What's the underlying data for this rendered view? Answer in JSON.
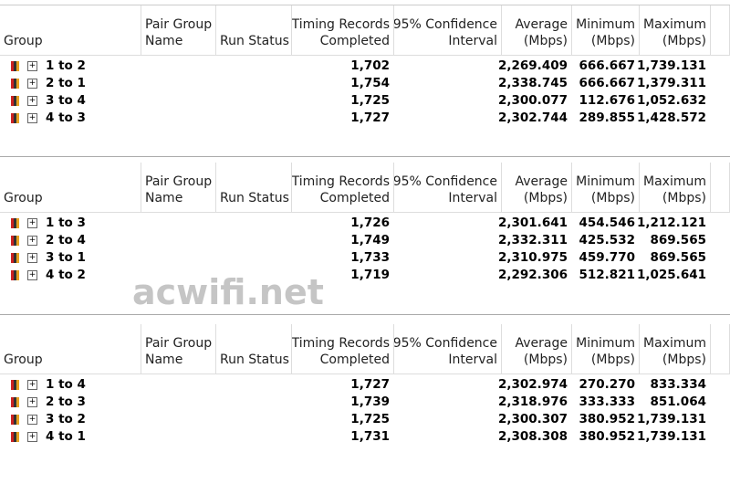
{
  "watermark": "acwifi.net",
  "tables": [
    {
      "columns": [
        [
          "Group"
        ],
        [
          "Pair Group",
          "Name"
        ],
        [
          "Run Status"
        ],
        [
          "Timing Records",
          "Completed"
        ],
        [
          "95% Confidence",
          "Interval"
        ],
        [
          "Average",
          "(Mbps)"
        ],
        [
          "Minimum",
          "(Mbps)"
        ],
        [
          "Maximum",
          "(Mbps)"
        ]
      ],
      "rows": [
        {
          "group": "1 to 2",
          "timing": "1,702",
          "average": "2,269.409",
          "minimum": "666.667",
          "maximum": "1,739.131"
        },
        {
          "group": "2 to 1",
          "timing": "1,754",
          "average": "2,338.745",
          "minimum": "666.667",
          "maximum": "1,379.311"
        },
        {
          "group": "3 to 4",
          "timing": "1,725",
          "average": "2,300.077",
          "minimum": "112.676",
          "maximum": "1,052.632"
        },
        {
          "group": "4 to 3",
          "timing": "1,727",
          "average": "2,302.744",
          "minimum": "289.855",
          "maximum": "1,428.572"
        }
      ]
    },
    {
      "columns": [
        [
          "Group"
        ],
        [
          "Pair Group",
          "Name"
        ],
        [
          "Run Status"
        ],
        [
          "Timing Records",
          "Completed"
        ],
        [
          "95% Confidence",
          "Interval"
        ],
        [
          "Average",
          "(Mbps)"
        ],
        [
          "Minimum",
          "(Mbps)"
        ],
        [
          "Maximum",
          "(Mbps)"
        ]
      ],
      "rows": [
        {
          "group": "1 to 3",
          "timing": "1,726",
          "average": "2,301.641",
          "minimum": "454.546",
          "maximum": "1,212.121"
        },
        {
          "group": "2 to 4",
          "timing": "1,749",
          "average": "2,332.311",
          "minimum": "425.532",
          "maximum": "869.565"
        },
        {
          "group": "3 to 1",
          "timing": "1,733",
          "average": "2,310.975",
          "minimum": "459.770",
          "maximum": "869.565"
        },
        {
          "group": "4 to 2",
          "timing": "1,719",
          "average": "2,292.306",
          "minimum": "512.821",
          "maximum": "1,025.641"
        }
      ]
    },
    {
      "columns": [
        [
          "Group"
        ],
        [
          "Pair Group",
          "Name"
        ],
        [
          "Run Status"
        ],
        [
          "Timing Records",
          "Completed"
        ],
        [
          "95% Confidence",
          "Interval"
        ],
        [
          "Average",
          "(Mbps)"
        ],
        [
          "Minimum",
          "(Mbps)"
        ],
        [
          "Maximum",
          "(Mbps)"
        ]
      ],
      "rows": [
        {
          "group": "1 to 4",
          "timing": "1,727",
          "average": "2,302.974",
          "minimum": "270.270",
          "maximum": "833.334"
        },
        {
          "group": "2 to 3",
          "timing": "1,739",
          "average": "2,318.976",
          "minimum": "333.333",
          "maximum": "851.064"
        },
        {
          "group": "3 to 2",
          "timing": "1,725",
          "average": "2,300.307",
          "minimum": "380.952",
          "maximum": "1,739.131"
        },
        {
          "group": "4 to 1",
          "timing": "1,731",
          "average": "2,308.308",
          "minimum": "380.952",
          "maximum": "1,739.131"
        }
      ]
    }
  ]
}
